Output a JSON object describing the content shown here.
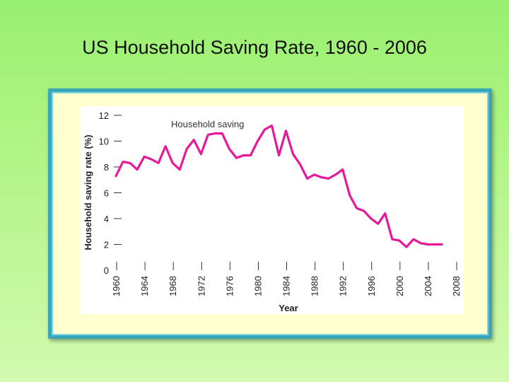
{
  "slide": {
    "title": "US Household Saving Rate, 1960 - 2006"
  },
  "colors": {
    "line": "#e6199b",
    "panel": "#ffffd0",
    "plot_bg": "#ffffff",
    "frame": "#3aa7b8"
  },
  "chart_data": {
    "type": "line",
    "title": "US Household Saving Rate, 1960 - 2006",
    "xlabel": "Year",
    "ylabel": "Household saving rate (%)",
    "xlim": [
      1960,
      2008
    ],
    "ylim": [
      0,
      12
    ],
    "x_ticks": [
      "1960",
      "1964",
      "1968",
      "1972",
      "1976",
      "1980",
      "1984",
      "1988",
      "1992",
      "1996",
      "2000",
      "2004",
      "2008"
    ],
    "y_ticks": [
      "0",
      "2",
      "4",
      "6",
      "8",
      "10",
      "12"
    ],
    "series": [
      {
        "name": "Household saving",
        "x": [
          1960,
          1961,
          1962,
          1963,
          1964,
          1965,
          1966,
          1967,
          1968,
          1969,
          1970,
          1971,
          1972,
          1973,
          1974,
          1975,
          1976,
          1977,
          1978,
          1979,
          1980,
          1981,
          1982,
          1983,
          1984,
          1985,
          1986,
          1987,
          1988,
          1989,
          1990,
          1991,
          1992,
          1993,
          1994,
          1995,
          1996,
          1997,
          1998,
          1999,
          2000,
          2001,
          2002,
          2003,
          2004,
          2005,
          2006
        ],
        "values": [
          7.3,
          8.4,
          8.3,
          7.8,
          8.8,
          8.6,
          8.3,
          9.6,
          8.3,
          7.8,
          9.4,
          10.1,
          9.0,
          10.5,
          10.6,
          10.6,
          9.4,
          8.7,
          8.9,
          8.9,
          10.0,
          10.9,
          11.2,
          8.9,
          10.8,
          9.0,
          8.2,
          7.1,
          7.4,
          7.2,
          7.1,
          7.4,
          7.8,
          5.8,
          4.8,
          4.6,
          4.0,
          3.6,
          4.4,
          2.4,
          2.3,
          1.8,
          2.4,
          2.1,
          2.0,
          2.0,
          2.0
        ]
      }
    ],
    "annotations": [
      {
        "text": "Household saving",
        "x": 1982,
        "y": 11.2
      }
    ]
  }
}
